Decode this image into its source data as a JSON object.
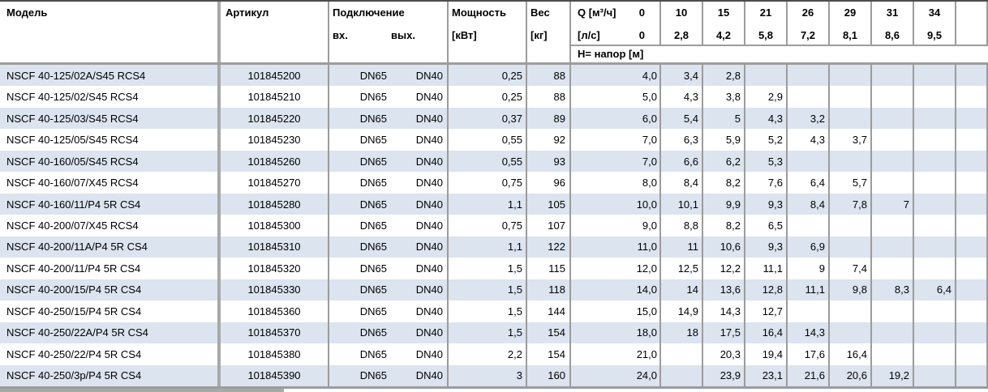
{
  "table": {
    "header": {
      "model": "Модель",
      "article": "Артикул",
      "connection": "Подключение",
      "inlet": "вх.",
      "outlet": "вых.",
      "power_line1": "Мощность",
      "power_line2": "[кВт]",
      "weight_line1": "Вес",
      "weight_line2": "[кг]",
      "flow_m3h_label": "Q [м³/ч]",
      "flow_m3h_zero": "0",
      "flow_ls_label": "[л/с]",
      "flow_ls_zero": "0",
      "flow_m3h_values": [
        "10",
        "15",
        "21",
        "26",
        "29",
        "31",
        "34",
        ""
      ],
      "flow_ls_values": [
        "2,8",
        "4,2",
        "5,8",
        "7,2",
        "8,1",
        "8,6",
        "9,5",
        ""
      ],
      "head_row_label": "H= напор [м]"
    },
    "rows": [
      {
        "model": "NSCF 40-125/02A/S45 RCS4",
        "article": "101845200",
        "inlet": "DN65",
        "outlet": "DN40",
        "power": "0,25",
        "weight": "88",
        "q0": "4,0",
        "h": [
          "3,4",
          "2,8",
          "",
          "",
          "",
          "",
          "",
          ""
        ]
      },
      {
        "model": "NSCF 40-125/02/S45 RCS4",
        "article": "101845210",
        "inlet": "DN65",
        "outlet": "DN40",
        "power": "0,25",
        "weight": "88",
        "q0": "5,0",
        "h": [
          "4,3",
          "3,8",
          "2,9",
          "",
          "",
          "",
          "",
          ""
        ]
      },
      {
        "model": "NSCF 40-125/03/S45 RCS4",
        "article": "101845220",
        "inlet": "DN65",
        "outlet": "DN40",
        "power": "0,37",
        "weight": "89",
        "q0": "6,0",
        "h": [
          "5,4",
          "5",
          "4,3",
          "3,2",
          "",
          "",
          "",
          ""
        ]
      },
      {
        "model": "NSCF 40-125/05/S45 RCS4",
        "article": "101845230",
        "inlet": "DN65",
        "outlet": "DN40",
        "power": "0,55",
        "weight": "92",
        "q0": "7,0",
        "h": [
          "6,3",
          "5,9",
          "5,2",
          "4,3",
          "3,7",
          "",
          "",
          ""
        ]
      },
      {
        "model": "NSCF 40-160/05/S45 RCS4",
        "article": "101845260",
        "inlet": "DN65",
        "outlet": "DN40",
        "power": "0,55",
        "weight": "93",
        "q0": "7,0",
        "h": [
          "6,6",
          "6,2",
          "5,3",
          "",
          "",
          "",
          "",
          ""
        ]
      },
      {
        "model": "NSCF 40-160/07/X45 RCS4",
        "article": "101845270",
        "inlet": "DN65",
        "outlet": "DN40",
        "power": "0,75",
        "weight": "96",
        "q0": "8,0",
        "h": [
          "8,4",
          "8,2",
          "7,6",
          "6,4",
          "5,7",
          "",
          "",
          ""
        ]
      },
      {
        "model": "NSCF 40-160/11/P4 5R CS4",
        "article": "101845280",
        "inlet": "DN65",
        "outlet": "DN40",
        "power": "1,1",
        "weight": "105",
        "q0": "10,0",
        "h": [
          "10,1",
          "9,9",
          "9,3",
          "8,4",
          "7,8",
          "7",
          "",
          ""
        ]
      },
      {
        "model": "NSCF 40-200/07/X45 RCS4",
        "article": "101845300",
        "inlet": "DN65",
        "outlet": "DN40",
        "power": "0,75",
        "weight": "107",
        "q0": "9,0",
        "h": [
          "8,8",
          "8,2",
          "6,5",
          "",
          "",
          "",
          "",
          ""
        ]
      },
      {
        "model": "NSCF 40-200/11A/P4 5R CS4",
        "article": "101845310",
        "inlet": "DN65",
        "outlet": "DN40",
        "power": "1,1",
        "weight": "122",
        "q0": "11,0",
        "h": [
          "11",
          "10,6",
          "9,3",
          "6,9",
          "",
          "",
          "",
          ""
        ]
      },
      {
        "model": "NSCF 40-200/11/P4 5R CS4",
        "article": "101845320",
        "inlet": "DN65",
        "outlet": "DN40",
        "power": "1,5",
        "weight": "115",
        "q0": "12,0",
        "h": [
          "12,5",
          "12,2",
          "11,1",
          "9",
          "7,4",
          "",
          "",
          ""
        ]
      },
      {
        "model": "NSCF 40-200/15/P4 5R CS4",
        "article": "101845330",
        "inlet": "DN65",
        "outlet": "DN40",
        "power": "1,5",
        "weight": "118",
        "q0": "14,0",
        "h": [
          "14",
          "13,6",
          "12,8",
          "11,1",
          "9,8",
          "8,3",
          "6,4",
          ""
        ]
      },
      {
        "model": "NSCF 40-250/15/P4 5R CS4",
        "article": "101845360",
        "inlet": "DN65",
        "outlet": "DN40",
        "power": "1,5",
        "weight": "144",
        "q0": "15,0",
        "h": [
          "14,9",
          "14,3",
          "12,7",
          "",
          "",
          "",
          "",
          ""
        ]
      },
      {
        "model": "NSCF 40-250/22A/P4 5R CS4",
        "article": "101845370",
        "inlet": "DN65",
        "outlet": "DN40",
        "power": "1,5",
        "weight": "154",
        "q0": "18,0",
        "h": [
          "18",
          "17,5",
          "16,4",
          "14,3",
          "",
          "",
          "",
          ""
        ]
      },
      {
        "model": "NSCF 40-250/22/P4 5R CS4",
        "article": "101845380",
        "inlet": "DN65",
        "outlet": "DN40",
        "power": "2,2",
        "weight": "154",
        "q0": "21,0",
        "h": [
          "",
          "20,3",
          "19,4",
          "17,6",
          "16,4",
          "",
          "",
          ""
        ]
      },
      {
        "model": "NSCF 40-250/3p/P4 5R CS4",
        "article": "101845390",
        "inlet": "DN65",
        "outlet": "DN40",
        "power": "3",
        "weight": "160",
        "q0": "24,0",
        "h": [
          "",
          "23,9",
          "23,1",
          "21,6",
          "20,6",
          "19,2",
          "",
          ""
        ]
      }
    ]
  },
  "colors": {
    "stripe": "#dbe4ef",
    "grid": "#9c9c9c",
    "thick_rule": "#a8a8a8",
    "top_rule": "#4d4d4d",
    "text": "#000000"
  }
}
